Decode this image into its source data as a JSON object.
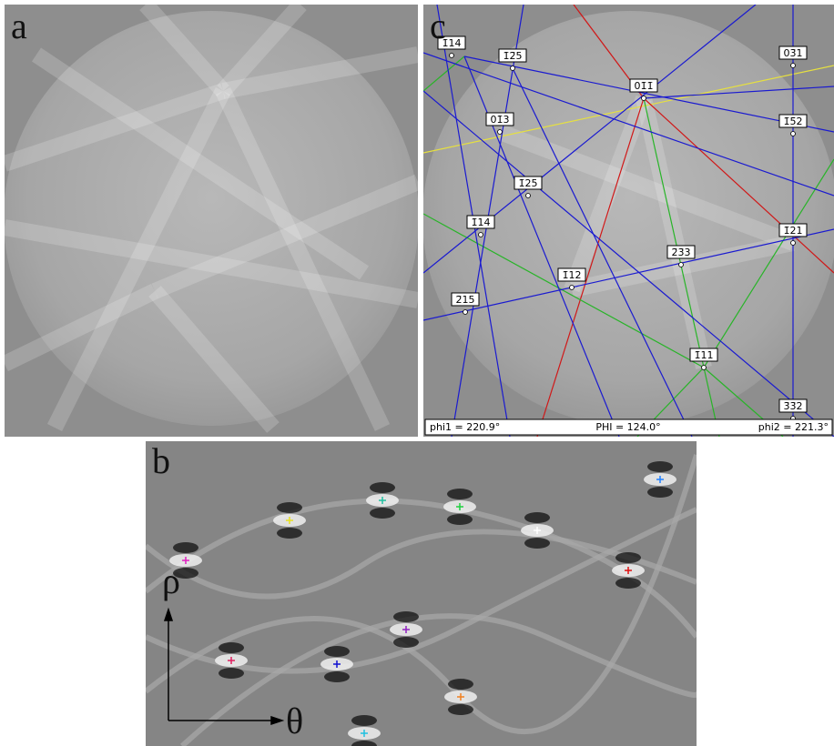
{
  "panel_a": {
    "letter": "a"
  },
  "panel_b": {
    "letter": "b",
    "rho": "ρ",
    "theta": "θ"
  },
  "panel_c": {
    "letter": "c",
    "labels": [
      "1̄14",
      "1̄2̄5",
      "03̄1",
      "01̄1̄",
      "01̄3",
      "1̄5̄2",
      "1̄25",
      "1̄14",
      "1̄21",
      "2̄3̄3",
      "1̄12",
      "2̄15",
      "1̄11",
      "3̄3̄2"
    ],
    "status": {
      "phi1": "phi1 = 220.9°",
      "PHI": "PHI = 124.0°",
      "phi2": "phi2 = 221.3°"
    }
  }
}
